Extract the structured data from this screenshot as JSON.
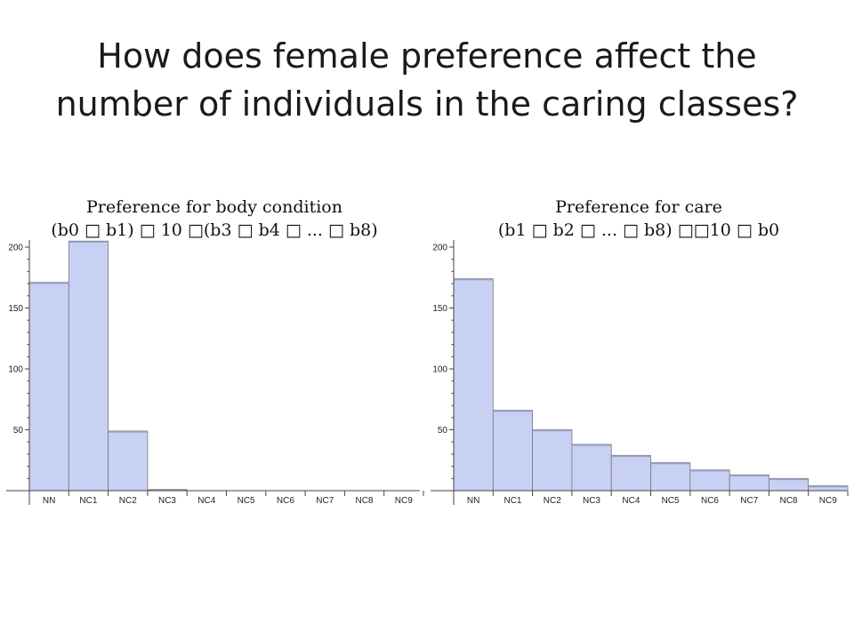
{
  "slide": {
    "title_line1": "How does female preference affect the",
    "title_line2": "number of individuals in the caring classes?"
  },
  "chart_data": [
    {
      "type": "bar",
      "title": "Preference for body condition",
      "subtitle": "(b0 □ b1) □ 10 □(b3 □ b4 □ ... □ b8)",
      "categories": [
        "NN",
        "NC1",
        "NC2",
        "NC3",
        "NC4",
        "NC5",
        "NC6",
        "NC7",
        "NC8",
        "NC9"
      ],
      "values": [
        171,
        205,
        49,
        1,
        0,
        0,
        0,
        0,
        0,
        0
      ],
      "ylim": [
        0,
        200
      ],
      "yticks": [
        50,
        100,
        150,
        200
      ],
      "ytick_labels": [
        "50",
        "100",
        "150",
        "200"
      ],
      "xlabel": "",
      "ylabel": "",
      "colors": {
        "bar_fill": "#c8d0f4",
        "bar_stroke": "#777777"
      }
    },
    {
      "type": "bar",
      "title": "Preference for care",
      "subtitle": "(b1 □ b2 □ ... □ b8) □□10 □ b0",
      "categories": [
        "NN",
        "NC1",
        "NC2",
        "NC3",
        "NC4",
        "NC5",
        "NC6",
        "NC7",
        "NC8",
        "NC9"
      ],
      "values": [
        174,
        66,
        50,
        38,
        29,
        23,
        17,
        13,
        10,
        4
      ],
      "ylim": [
        0,
        200
      ],
      "yticks": [
        50,
        100,
        150,
        200
      ],
      "ytick_labels": [
        "50",
        "100",
        "150",
        "200"
      ],
      "xlabel": "",
      "ylabel": "",
      "colors": {
        "bar_fill": "#c8d0f4",
        "bar_stroke": "#777777"
      }
    }
  ]
}
